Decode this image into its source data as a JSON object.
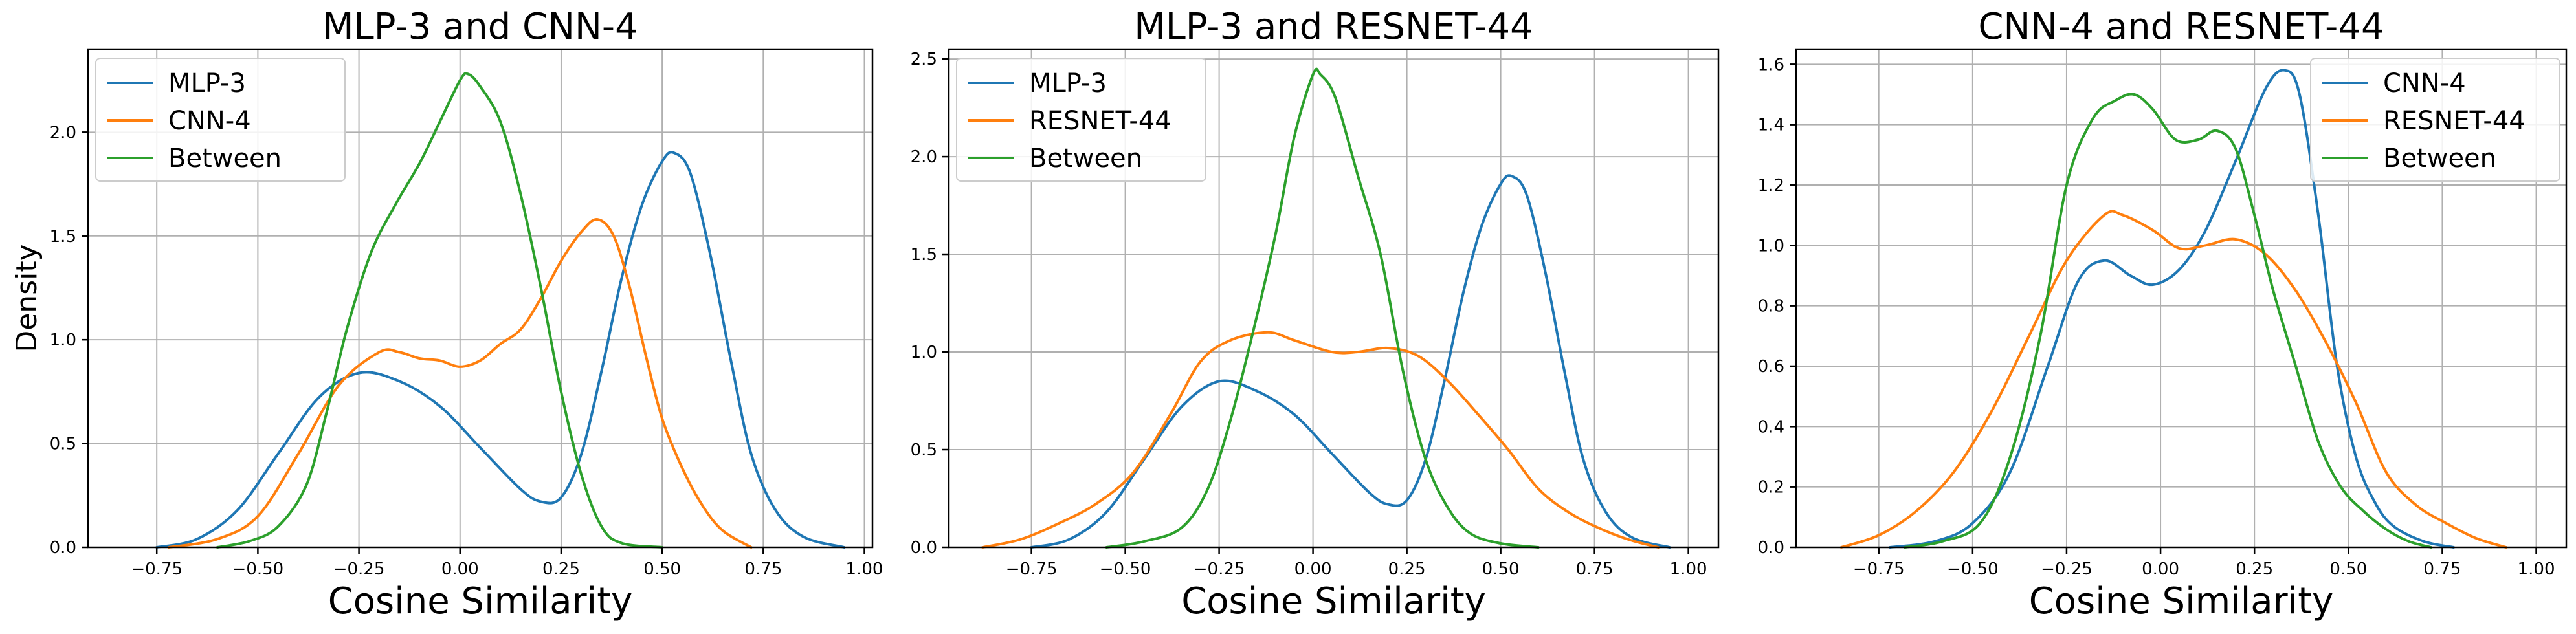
{
  "colors": {
    "series1": "#1f77b4",
    "series2": "#ff7f0e",
    "series3": "#2ca02c",
    "grid": "#b0b0b0"
  },
  "chart_data": [
    {
      "type": "line",
      "title": "MLP-3 and CNN-4",
      "xlabel": "Cosine Similarity",
      "ylabel": "Density",
      "xlim": [
        -0.92,
        1.02
      ],
      "ylim": [
        0,
        2.4
      ],
      "xticks": [
        -0.75,
        -0.5,
        -0.25,
        0.0,
        0.25,
        0.5,
        0.75,
        1.0
      ],
      "xtick_labels": [
        "−0.75",
        "−0.50",
        "−0.25",
        "0.00",
        "0.25",
        "0.50",
        "0.75",
        "1.00"
      ],
      "yticks": [
        0,
        0.5,
        1.0,
        1.5,
        2.0
      ],
      "ytick_labels": [
        "0.0",
        "0.5",
        "1.0",
        "1.5",
        "2.0"
      ],
      "grid": true,
      "legend_position": "top-left",
      "series": [
        {
          "name": "MLP-3",
          "color": "#1f77b4",
          "points": [
            [
              -0.75,
              0.0
            ],
            [
              -0.65,
              0.04
            ],
            [
              -0.55,
              0.18
            ],
            [
              -0.45,
              0.45
            ],
            [
              -0.35,
              0.72
            ],
            [
              -0.25,
              0.84
            ],
            [
              -0.15,
              0.8
            ],
            [
              -0.05,
              0.68
            ],
            [
              0.05,
              0.48
            ],
            [
              0.15,
              0.28
            ],
            [
              0.2,
              0.22
            ],
            [
              0.25,
              0.24
            ],
            [
              0.3,
              0.45
            ],
            [
              0.35,
              0.85
            ],
            [
              0.4,
              1.3
            ],
            [
              0.45,
              1.65
            ],
            [
              0.5,
              1.86
            ],
            [
              0.53,
              1.9
            ],
            [
              0.57,
              1.8
            ],
            [
              0.62,
              1.4
            ],
            [
              0.67,
              0.9
            ],
            [
              0.72,
              0.45
            ],
            [
              0.78,
              0.18
            ],
            [
              0.85,
              0.05
            ],
            [
              0.95,
              0.0
            ]
          ]
        },
        {
          "name": "CNN-4",
          "color": "#ff7f0e",
          "points": [
            [
              -0.72,
              0.0
            ],
            [
              -0.6,
              0.04
            ],
            [
              -0.5,
              0.15
            ],
            [
              -0.4,
              0.45
            ],
            [
              -0.3,
              0.78
            ],
            [
              -0.2,
              0.94
            ],
            [
              -0.15,
              0.94
            ],
            [
              -0.1,
              0.91
            ],
            [
              -0.05,
              0.9
            ],
            [
              0.0,
              0.87
            ],
            [
              0.05,
              0.9
            ],
            [
              0.1,
              0.98
            ],
            [
              0.15,
              1.05
            ],
            [
              0.2,
              1.2
            ],
            [
              0.25,
              1.38
            ],
            [
              0.3,
              1.52
            ],
            [
              0.34,
              1.58
            ],
            [
              0.38,
              1.5
            ],
            [
              0.42,
              1.25
            ],
            [
              0.46,
              0.92
            ],
            [
              0.5,
              0.62
            ],
            [
              0.55,
              0.38
            ],
            [
              0.6,
              0.2
            ],
            [
              0.65,
              0.08
            ],
            [
              0.72,
              0.0
            ]
          ]
        },
        {
          "name": "Between",
          "color": "#2ca02c",
          "points": [
            [
              -0.6,
              0.0
            ],
            [
              -0.52,
              0.03
            ],
            [
              -0.45,
              0.1
            ],
            [
              -0.38,
              0.3
            ],
            [
              -0.33,
              0.65
            ],
            [
              -0.28,
              1.05
            ],
            [
              -0.22,
              1.42
            ],
            [
              -0.16,
              1.65
            ],
            [
              -0.1,
              1.85
            ],
            [
              -0.05,
              2.05
            ],
            [
              0.0,
              2.25
            ],
            [
              0.02,
              2.28
            ],
            [
              0.05,
              2.22
            ],
            [
              0.1,
              2.05
            ],
            [
              0.15,
              1.7
            ],
            [
              0.2,
              1.25
            ],
            [
              0.25,
              0.75
            ],
            [
              0.3,
              0.35
            ],
            [
              0.35,
              0.1
            ],
            [
              0.4,
              0.02
            ],
            [
              0.5,
              0.0
            ]
          ]
        }
      ]
    },
    {
      "type": "line",
      "title": "MLP-3 and RESNET-44",
      "xlabel": "Cosine Similarity",
      "ylabel": "",
      "xlim": [
        -0.97,
        1.08
      ],
      "ylim": [
        0,
        2.55
      ],
      "xticks": [
        -0.75,
        -0.5,
        -0.25,
        0.0,
        0.25,
        0.5,
        0.75,
        1.0
      ],
      "xtick_labels": [
        "−0.75",
        "−0.50",
        "−0.25",
        "0.00",
        "0.25",
        "0.50",
        "0.75",
        "1.00"
      ],
      "yticks": [
        0,
        0.5,
        1.0,
        1.5,
        2.0,
        2.5
      ],
      "ytick_labels": [
        "0.0",
        "0.5",
        "1.0",
        "1.5",
        "2.0",
        "2.5"
      ],
      "grid": true,
      "legend_position": "top-left",
      "series": [
        {
          "name": "MLP-3",
          "color": "#1f77b4",
          "points": [
            [
              -0.75,
              0.0
            ],
            [
              -0.65,
              0.04
            ],
            [
              -0.55,
              0.18
            ],
            [
              -0.45,
              0.45
            ],
            [
              -0.35,
              0.72
            ],
            [
              -0.25,
              0.85
            ],
            [
              -0.15,
              0.8
            ],
            [
              -0.05,
              0.68
            ],
            [
              0.05,
              0.48
            ],
            [
              0.15,
              0.28
            ],
            [
              0.2,
              0.22
            ],
            [
              0.25,
              0.24
            ],
            [
              0.3,
              0.45
            ],
            [
              0.35,
              0.85
            ],
            [
              0.4,
              1.3
            ],
            [
              0.45,
              1.65
            ],
            [
              0.5,
              1.86
            ],
            [
              0.53,
              1.9
            ],
            [
              0.57,
              1.8
            ],
            [
              0.62,
              1.4
            ],
            [
              0.67,
              0.9
            ],
            [
              0.72,
              0.45
            ],
            [
              0.78,
              0.18
            ],
            [
              0.85,
              0.05
            ],
            [
              0.95,
              0.0
            ]
          ]
        },
        {
          "name": "RESNET-44",
          "color": "#ff7f0e",
          "points": [
            [
              -0.88,
              0.0
            ],
            [
              -0.78,
              0.04
            ],
            [
              -0.68,
              0.12
            ],
            [
              -0.58,
              0.22
            ],
            [
              -0.48,
              0.38
            ],
            [
              -0.38,
              0.68
            ],
            [
              -0.3,
              0.95
            ],
            [
              -0.22,
              1.06
            ],
            [
              -0.12,
              1.1
            ],
            [
              -0.05,
              1.06
            ],
            [
              0.05,
              1.0
            ],
            [
              0.12,
              1.0
            ],
            [
              0.2,
              1.02
            ],
            [
              0.28,
              0.98
            ],
            [
              0.36,
              0.85
            ],
            [
              0.44,
              0.68
            ],
            [
              0.52,
              0.5
            ],
            [
              0.6,
              0.3
            ],
            [
              0.68,
              0.18
            ],
            [
              0.76,
              0.1
            ],
            [
              0.84,
              0.04
            ],
            [
              0.92,
              0.0
            ]
          ]
        },
        {
          "name": "Between",
          "color": "#2ca02c",
          "points": [
            [
              -0.55,
              0.0
            ],
            [
              -0.45,
              0.03
            ],
            [
              -0.35,
              0.1
            ],
            [
              -0.28,
              0.3
            ],
            [
              -0.22,
              0.65
            ],
            [
              -0.16,
              1.1
            ],
            [
              -0.1,
              1.6
            ],
            [
              -0.05,
              2.1
            ],
            [
              0.0,
              2.42
            ],
            [
              0.02,
              2.42
            ],
            [
              0.06,
              2.3
            ],
            [
              0.12,
              1.9
            ],
            [
              0.18,
              1.5
            ],
            [
              0.24,
              0.9
            ],
            [
              0.3,
              0.45
            ],
            [
              0.36,
              0.2
            ],
            [
              0.42,
              0.07
            ],
            [
              0.5,
              0.02
            ],
            [
              0.6,
              0.0
            ]
          ]
        }
      ]
    },
    {
      "type": "line",
      "title": "CNN-4 and RESNET-44",
      "xlabel": "Cosine Similarity",
      "ylabel": "",
      "xlim": [
        -0.97,
        1.08
      ],
      "ylim": [
        0,
        1.65
      ],
      "xticks": [
        -0.75,
        -0.5,
        -0.25,
        0.0,
        0.25,
        0.5,
        0.75,
        1.0
      ],
      "xtick_labels": [
        "−0.75",
        "−0.50",
        "−0.25",
        "0.00",
        "0.25",
        "0.50",
        "0.75",
        "1.00"
      ],
      "yticks": [
        0,
        0.2,
        0.4,
        0.6,
        0.8,
        1.0,
        1.2,
        1.4,
        1.6
      ],
      "ytick_labels": [
        "0.0",
        "0.2",
        "0.4",
        "0.6",
        "0.8",
        "1.0",
        "1.2",
        "1.4",
        "1.6"
      ],
      "grid": true,
      "legend_position": "top-right",
      "series": [
        {
          "name": "CNN-4",
          "color": "#1f77b4",
          "points": [
            [
              -0.72,
              0.0
            ],
            [
              -0.6,
              0.02
            ],
            [
              -0.5,
              0.08
            ],
            [
              -0.4,
              0.25
            ],
            [
              -0.3,
              0.6
            ],
            [
              -0.22,
              0.88
            ],
            [
              -0.15,
              0.95
            ],
            [
              -0.08,
              0.9
            ],
            [
              -0.02,
              0.87
            ],
            [
              0.05,
              0.92
            ],
            [
              0.12,
              1.05
            ],
            [
              0.2,
              1.28
            ],
            [
              0.28,
              1.52
            ],
            [
              0.33,
              1.58
            ],
            [
              0.37,
              1.5
            ],
            [
              0.42,
              1.1
            ],
            [
              0.47,
              0.6
            ],
            [
              0.52,
              0.3
            ],
            [
              0.57,
              0.15
            ],
            [
              0.62,
              0.07
            ],
            [
              0.7,
              0.02
            ],
            [
              0.78,
              0.0
            ]
          ]
        },
        {
          "name": "RESNET-44",
          "color": "#ff7f0e",
          "points": [
            [
              -0.85,
              0.0
            ],
            [
              -0.75,
              0.04
            ],
            [
              -0.65,
              0.12
            ],
            [
              -0.55,
              0.25
            ],
            [
              -0.45,
              0.45
            ],
            [
              -0.35,
              0.7
            ],
            [
              -0.25,
              0.95
            ],
            [
              -0.15,
              1.1
            ],
            [
              -0.1,
              1.1
            ],
            [
              -0.02,
              1.05
            ],
            [
              0.05,
              0.99
            ],
            [
              0.12,
              1.0
            ],
            [
              0.2,
              1.02
            ],
            [
              0.28,
              0.97
            ],
            [
              0.36,
              0.85
            ],
            [
              0.44,
              0.68
            ],
            [
              0.52,
              0.48
            ],
            [
              0.6,
              0.25
            ],
            [
              0.68,
              0.14
            ],
            [
              0.76,
              0.08
            ],
            [
              0.84,
              0.03
            ],
            [
              0.92,
              0.0
            ]
          ]
        },
        {
          "name": "Between",
          "color": "#2ca02c",
          "points": [
            [
              -0.68,
              0.0
            ],
            [
              -0.58,
              0.02
            ],
            [
              -0.48,
              0.08
            ],
            [
              -0.4,
              0.3
            ],
            [
              -0.32,
              0.7
            ],
            [
              -0.25,
              1.2
            ],
            [
              -0.18,
              1.42
            ],
            [
              -0.12,
              1.48
            ],
            [
              -0.07,
              1.5
            ],
            [
              -0.02,
              1.45
            ],
            [
              0.04,
              1.35
            ],
            [
              0.1,
              1.35
            ],
            [
              0.15,
              1.38
            ],
            [
              0.2,
              1.32
            ],
            [
              0.25,
              1.1
            ],
            [
              0.3,
              0.85
            ],
            [
              0.36,
              0.6
            ],
            [
              0.42,
              0.35
            ],
            [
              0.48,
              0.2
            ],
            [
              0.54,
              0.12
            ],
            [
              0.6,
              0.06
            ],
            [
              0.66,
              0.02
            ],
            [
              0.72,
              0.0
            ]
          ]
        }
      ]
    }
  ]
}
